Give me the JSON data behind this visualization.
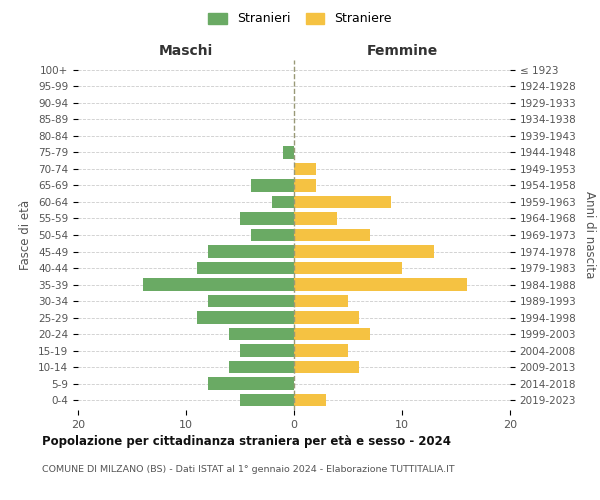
{
  "age_groups": [
    "0-4",
    "5-9",
    "10-14",
    "15-19",
    "20-24",
    "25-29",
    "30-34",
    "35-39",
    "40-44",
    "45-49",
    "50-54",
    "55-59",
    "60-64",
    "65-69",
    "70-74",
    "75-79",
    "80-84",
    "85-89",
    "90-94",
    "95-99",
    "100+"
  ],
  "birth_years": [
    "2019-2023",
    "2014-2018",
    "2009-2013",
    "2004-2008",
    "1999-2003",
    "1994-1998",
    "1989-1993",
    "1984-1988",
    "1979-1983",
    "1974-1978",
    "1969-1973",
    "1964-1968",
    "1959-1963",
    "1954-1958",
    "1949-1953",
    "1944-1948",
    "1939-1943",
    "1934-1938",
    "1929-1933",
    "1924-1928",
    "≤ 1923"
  ],
  "maschi": [
    5,
    8,
    6,
    5,
    6,
    9,
    8,
    14,
    9,
    8,
    4,
    5,
    2,
    4,
    0,
    1,
    0,
    0,
    0,
    0,
    0
  ],
  "femmine": [
    3,
    0,
    6,
    5,
    7,
    6,
    5,
    16,
    10,
    13,
    7,
    4,
    9,
    2,
    2,
    0,
    0,
    0,
    0,
    0,
    0
  ],
  "maschi_color": "#6aaa64",
  "femmine_color": "#f5c242",
  "title": "Popolazione per cittadinanza straniera per età e sesso - 2024",
  "subtitle": "COMUNE DI MILZANO (BS) - Dati ISTAT al 1° gennaio 2024 - Elaborazione TUTTITALIA.IT",
  "xlabel_left": "Maschi",
  "xlabel_right": "Femmine",
  "ylabel_left": "Fasce di età",
  "ylabel_right": "Anni di nascita",
  "legend_stranieri": "Stranieri",
  "legend_straniere": "Straniere",
  "xlim": 20,
  "background_color": "#ffffff",
  "grid_color": "#cccccc"
}
